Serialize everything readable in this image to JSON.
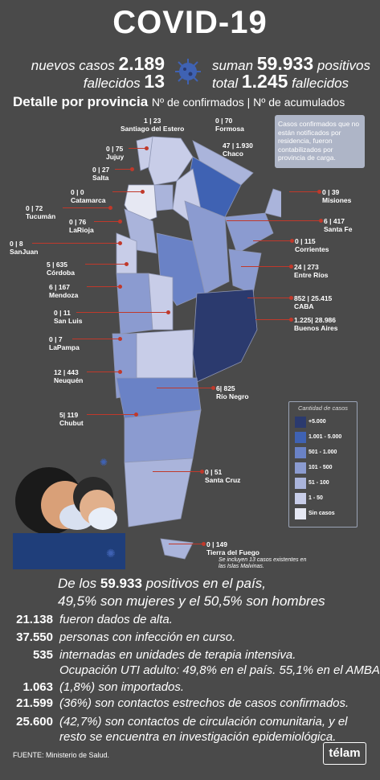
{
  "title": "COVID-19",
  "header": {
    "new_cases_label": "nuevos casos",
    "new_cases": "2.189",
    "deaths_label": "fallecidos",
    "deaths": "13",
    "sum_label": "suman",
    "sum": "59.933",
    "positive_label": "positivos",
    "total_label": "total",
    "total_deaths": "1.245",
    "total_deaths_label": "fallecidos"
  },
  "subtitle": {
    "main": "Detalle por provincia",
    "rest": "Nº de confirmados | Nº de acumulados"
  },
  "note": "Casos confirmados que no están notificados por residencia, fueron contabilizados por provincia de carga.",
  "provinces": [
    {
      "value": "1 | 23",
      "name": "Santiago del Estero"
    },
    {
      "value": "0 | 70",
      "name": "Formosa"
    },
    {
      "value": "0 | 75",
      "name": "Jujuy"
    },
    {
      "value": "47 | 1.930",
      "name": "Chaco"
    },
    {
      "value": "0 | 27",
      "name": "Salta"
    },
    {
      "value": "0 | 0",
      "name": "Catamarca"
    },
    {
      "value": "0 | 39",
      "name": "Misiones"
    },
    {
      "value": "0 | 72",
      "name": "Tucumán"
    },
    {
      "value": "6 | 417",
      "name": "Santa Fe"
    },
    {
      "value": "0 | 76",
      "name": "LaRioja"
    },
    {
      "value": "0 | 115",
      "name": "Corrientes"
    },
    {
      "value": "0 | 8",
      "name": "SanJuan"
    },
    {
      "value": "5 | 635",
      "name": "Córdoba"
    },
    {
      "value": "24 | 273",
      "name": "Entre Ríos"
    },
    {
      "value": "6 | 167",
      "name": "Mendoza"
    },
    {
      "value": "852 | 25.415",
      "name": "CABA"
    },
    {
      "value": "0 | 11",
      "name": "San Luis"
    },
    {
      "value": "1.225| 28.986",
      "name": "Buenos Aires"
    },
    {
      "value": "0 | 7",
      "name": "LaPampa"
    },
    {
      "value": "12 | 443",
      "name": "Neuquén"
    },
    {
      "value": "6| 825",
      "name": "Río Negro"
    },
    {
      "value": "5| 119",
      "name": "Chubut"
    },
    {
      "value": "0 | 51",
      "name": "Santa Cruz"
    },
    {
      "value": "0 | 149",
      "name": "Tierra del Fuego"
    }
  ],
  "tdf_note": "Se incluyen 13 casos existentes en las Islas Malvinas.",
  "legend": {
    "title": "Cantidad de casos",
    "items": [
      {
        "label": "+5.000",
        "color": "#2b3a6e"
      },
      {
        "label": "1.001 - 5.000",
        "color": "#3f62b3"
      },
      {
        "label": "501 - 1.000",
        "color": "#6a82c6"
      },
      {
        "label": "101 - 500",
        "color": "#8b9bd0"
      },
      {
        "label": "51 - 100",
        "color": "#aab4db"
      },
      {
        "label": "1 - 50",
        "color": "#c8cde8"
      },
      {
        "label": "Sin casos",
        "color": "#e6e8f3"
      }
    ]
  },
  "summary": {
    "l1a": "De los",
    "l1b": "59.933",
    "l1c": "positivos en el país,",
    "l2a": "49,5%",
    "l2b": "son mujeres y el",
    "l2c": "50,5%",
    "l2d": "son hombres"
  },
  "stats": [
    {
      "num": "21.138",
      "text": "fueron dados de alta."
    },
    {
      "num": "37.550",
      "text": "personas con infección en curso."
    },
    {
      "num": "535",
      "text": "internadas en unidades de terapia intensiva.",
      "text2": "Ocupación UTI adulto: 49,8% en el país. 55,1% en el AMBA."
    },
    {
      "num": "1.063",
      "text": "(1,8%) son importados."
    },
    {
      "num": "21.599",
      "text": "(36%) son contactos estrechos de casos confirmados."
    },
    {
      "num": "25.600",
      "text": "(42,7%) son contactos de circulación comunitaria, y el",
      "text2": "resto se encuentra en investigación epidemiológica."
    }
  ],
  "source": "FUENTE: Ministerio de Salud.",
  "logo": "télam"
}
